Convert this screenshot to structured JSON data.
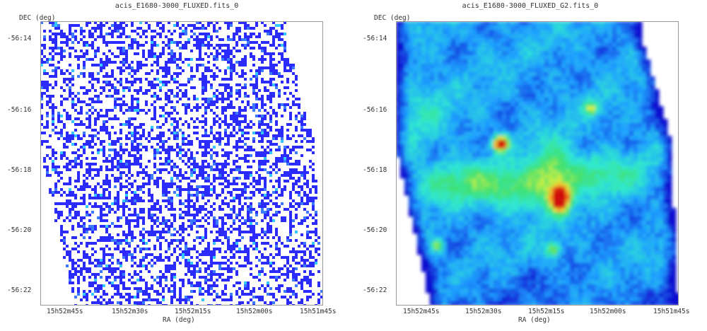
{
  "chart_data": [
    {
      "type": "heatmap",
      "title": "acis_E1680-3000_FLUXED.fits_0",
      "xlabel": "RA (deg)",
      "ylabel": "DEC (deg)",
      "x_ticks": [
        "15h52m45s",
        "15h52m30s",
        "15h52m15s",
        "15h52m00s",
        "15h51m45s"
      ],
      "y_ticks": [
        "-56:14",
        "-56:16",
        "-56:18",
        "-56:20",
        "-56:22"
      ],
      "colormap": [
        "#ffffff",
        "#2b2bff",
        "#3a7bff",
        "#33c8ff"
      ],
      "style": "sparse-pixels"
    },
    {
      "type": "heatmap",
      "title": "acis_E1680-3000_FLUXED_G2.fits_0",
      "xlabel": "RA (deg)",
      "ylabel": "DEC (deg)",
      "x_ticks": [
        "15h52m45s",
        "15h52m30s",
        "15h52m15s",
        "15h52m00s",
        "15h51m45s"
      ],
      "y_ticks": [
        "-56:14",
        "-56:16",
        "-56:18",
        "-56:20",
        "-56:22"
      ],
      "colormap": [
        "#1010d0",
        "#1fa0ff",
        "#30e8d0",
        "#40e070",
        "#d8f040",
        "#ff9020",
        "#d01010"
      ],
      "style": "smoothed"
    }
  ]
}
